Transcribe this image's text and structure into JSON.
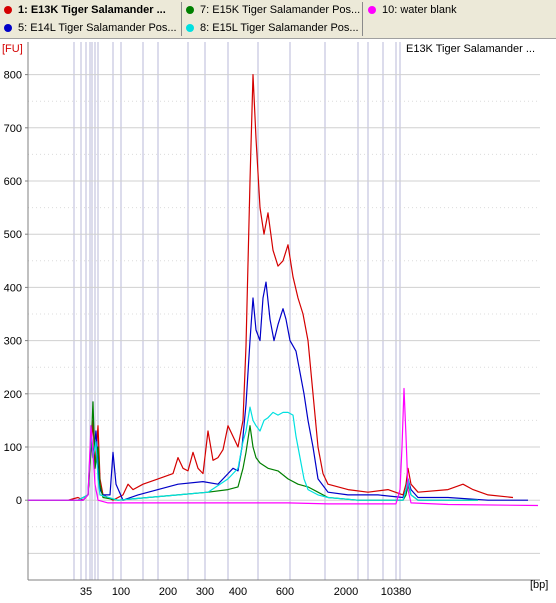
{
  "legend": [
    {
      "label": "1: E13K Tiger Salamander ...",
      "color": "#d40000",
      "bold": true
    },
    {
      "label": "5: E14L Tiger Salamander Pos...",
      "color": "#0000c8",
      "bold": false
    },
    {
      "label": "7: E15K Tiger Salamander Pos...",
      "color": "#008000",
      "bold": false
    },
    {
      "label": "8: E15L Tiger Salamander Pos...",
      "color": "#00e0e0",
      "bold": false
    },
    {
      "label": "10: water blank",
      "color": "#ff00ff",
      "bold": false
    }
  ],
  "chart_data": {
    "type": "line",
    "title": "E13K Tiger Salamander ...",
    "ylabel": "[FU]",
    "xlabel": "[bp]",
    "ylim": [
      -150,
      850
    ],
    "yticks": [
      0,
      100,
      200,
      300,
      400,
      500,
      600,
      700,
      800
    ],
    "xticks": [
      "35",
      "100",
      "200",
      "300",
      "400",
      "600",
      "2000",
      "10380"
    ],
    "series": [
      {
        "name": "1: E13K Tiger Salamander ...",
        "color": "#d40000",
        "points": [
          [
            0,
            0
          ],
          [
            40,
            0
          ],
          [
            50,
            5
          ],
          [
            55,
            0
          ],
          [
            60,
            10
          ],
          [
            65,
            150
          ],
          [
            67,
            60
          ],
          [
            70,
            140
          ],
          [
            72,
            40
          ],
          [
            75,
            10
          ],
          [
            85,
            0
          ],
          [
            95,
            10
          ],
          [
            100,
            30
          ],
          [
            105,
            20
          ],
          [
            115,
            30
          ],
          [
            130,
            40
          ],
          [
            145,
            50
          ],
          [
            150,
            80
          ],
          [
            155,
            60
          ],
          [
            160,
            55
          ],
          [
            165,
            90
          ],
          [
            170,
            60
          ],
          [
            175,
            50
          ],
          [
            180,
            130
          ],
          [
            185,
            75
          ],
          [
            190,
            80
          ],
          [
            195,
            95
          ],
          [
            200,
            140
          ],
          [
            205,
            120
          ],
          [
            210,
            100
          ],
          [
            215,
            150
          ],
          [
            218,
            290
          ],
          [
            222,
            600
          ],
          [
            225,
            800
          ],
          [
            228,
            680
          ],
          [
            232,
            550
          ],
          [
            236,
            500
          ],
          [
            240,
            540
          ],
          [
            245,
            470
          ],
          [
            250,
            440
          ],
          [
            255,
            450
          ],
          [
            260,
            480
          ],
          [
            265,
            420
          ],
          [
            270,
            380
          ],
          [
            275,
            350
          ],
          [
            280,
            300
          ],
          [
            285,
            200
          ],
          [
            290,
            100
          ],
          [
            295,
            50
          ],
          [
            300,
            30
          ],
          [
            320,
            20
          ],
          [
            340,
            15
          ],
          [
            360,
            20
          ],
          [
            375,
            10
          ],
          [
            378,
            30
          ],
          [
            380,
            60
          ],
          [
            383,
            30
          ],
          [
            390,
            15
          ],
          [
            420,
            20
          ],
          [
            435,
            30
          ],
          [
            445,
            20
          ],
          [
            460,
            10
          ],
          [
            485,
            5
          ]
        ]
      },
      {
        "name": "5: E14L Tiger Salamander Pos...",
        "color": "#0000c8",
        "points": [
          [
            0,
            0
          ],
          [
            45,
            0
          ],
          [
            55,
            0
          ],
          [
            60,
            10
          ],
          [
            63,
            120
          ],
          [
            65,
            80
          ],
          [
            68,
            130
          ],
          [
            70,
            60
          ],
          [
            72,
            20
          ],
          [
            75,
            10
          ],
          [
            82,
            10
          ],
          [
            85,
            90
          ],
          [
            88,
            30
          ],
          [
            95,
            0
          ],
          [
            110,
            10
          ],
          [
            130,
            20
          ],
          [
            150,
            30
          ],
          [
            175,
            35
          ],
          [
            190,
            30
          ],
          [
            200,
            50
          ],
          [
            205,
            60
          ],
          [
            210,
            55
          ],
          [
            214,
            100
          ],
          [
            218,
            180
          ],
          [
            222,
            300
          ],
          [
            225,
            380
          ],
          [
            228,
            320
          ],
          [
            232,
            300
          ],
          [
            235,
            380
          ],
          [
            238,
            410
          ],
          [
            242,
            340
          ],
          [
            246,
            300
          ],
          [
            250,
            330
          ],
          [
            255,
            360
          ],
          [
            258,
            340
          ],
          [
            262,
            300
          ],
          [
            268,
            280
          ],
          [
            272,
            240
          ],
          [
            276,
            200
          ],
          [
            280,
            150
          ],
          [
            285,
            100
          ],
          [
            290,
            40
          ],
          [
            300,
            15
          ],
          [
            320,
            10
          ],
          [
            350,
            10
          ],
          [
            375,
            5
          ],
          [
            378,
            20
          ],
          [
            380,
            40
          ],
          [
            383,
            20
          ],
          [
            390,
            5
          ],
          [
            420,
            5
          ],
          [
            460,
            0
          ],
          [
            500,
            0
          ]
        ]
      },
      {
        "name": "7: E15K Tiger Salamander Pos...",
        "color": "#008000",
        "points": [
          [
            0,
            0
          ],
          [
            50,
            0
          ],
          [
            60,
            10
          ],
          [
            63,
            100
          ],
          [
            65,
            185
          ],
          [
            67,
            60
          ],
          [
            70,
            100
          ],
          [
            72,
            30
          ],
          [
            75,
            5
          ],
          [
            90,
            0
          ],
          [
            120,
            5
          ],
          [
            150,
            10
          ],
          [
            180,
            15
          ],
          [
            200,
            20
          ],
          [
            210,
            25
          ],
          [
            215,
            60
          ],
          [
            218,
            90
          ],
          [
            222,
            140
          ],
          [
            225,
            100
          ],
          [
            228,
            80
          ],
          [
            232,
            70
          ],
          [
            240,
            60
          ],
          [
            250,
            55
          ],
          [
            260,
            40
          ],
          [
            270,
            30
          ],
          [
            280,
            25
          ],
          [
            290,
            15
          ],
          [
            300,
            5
          ],
          [
            330,
            0
          ],
          [
            375,
            0
          ],
          [
            378,
            10
          ],
          [
            380,
            30
          ],
          [
            383,
            10
          ],
          [
            390,
            0
          ],
          [
            450,
            0
          ]
        ]
      },
      {
        "name": "8: E15L Tiger Salamander Pos...",
        "color": "#00e0e0",
        "points": [
          [
            0,
            0
          ],
          [
            50,
            0
          ],
          [
            60,
            10
          ],
          [
            63,
            130
          ],
          [
            65,
            80
          ],
          [
            68,
            110
          ],
          [
            70,
            40
          ],
          [
            72,
            10
          ],
          [
            90,
            0
          ],
          [
            120,
            5
          ],
          [
            150,
            10
          ],
          [
            180,
            15
          ],
          [
            200,
            40
          ],
          [
            205,
            50
          ],
          [
            210,
            60
          ],
          [
            215,
            110
          ],
          [
            218,
            130
          ],
          [
            222,
            175
          ],
          [
            225,
            150
          ],
          [
            228,
            140
          ],
          [
            232,
            130
          ],
          [
            236,
            150
          ],
          [
            240,
            155
          ],
          [
            245,
            165
          ],
          [
            250,
            160
          ],
          [
            255,
            165
          ],
          [
            260,
            165
          ],
          [
            265,
            160
          ],
          [
            268,
            120
          ],
          [
            272,
            80
          ],
          [
            276,
            40
          ],
          [
            280,
            20
          ],
          [
            290,
            10
          ],
          [
            300,
            5
          ],
          [
            330,
            0
          ],
          [
            375,
            0
          ],
          [
            378,
            20
          ],
          [
            380,
            40
          ],
          [
            383,
            10
          ],
          [
            390,
            0
          ],
          [
            450,
            0
          ]
        ]
      },
      {
        "name": "10: water blank",
        "color": "#ff00ff",
        "points": [
          [
            0,
            0
          ],
          [
            55,
            0
          ],
          [
            60,
            10
          ],
          [
            63,
            140
          ],
          [
            65,
            90
          ],
          [
            67,
            30
          ],
          [
            70,
            0
          ],
          [
            80,
            -5
          ],
          [
            130,
            -5
          ],
          [
            200,
            -5
          ],
          [
            260,
            -5
          ],
          [
            300,
            -7
          ],
          [
            340,
            -7
          ],
          [
            368,
            -7
          ],
          [
            372,
            20
          ],
          [
            374,
            100
          ],
          [
            376,
            210
          ],
          [
            378,
            120
          ],
          [
            380,
            20
          ],
          [
            383,
            -5
          ],
          [
            420,
            -8
          ],
          [
            510,
            -10
          ]
        ]
      }
    ]
  }
}
